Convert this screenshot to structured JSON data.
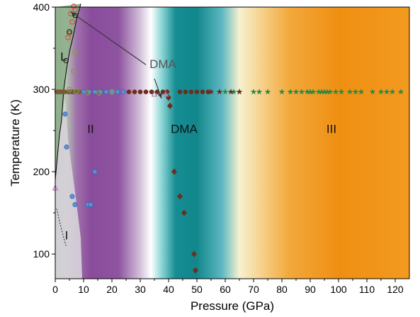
{
  "chart_data": {
    "type": "scatter",
    "xlabel": "Pressure (GPa)",
    "ylabel": "Temperature (K)",
    "xlim": [
      0,
      125
    ],
    "ylim": [
      70,
      400
    ],
    "xticks": [
      0,
      10,
      20,
      30,
      40,
      50,
      60,
      70,
      80,
      90,
      100,
      110,
      120
    ],
    "yticks": [
      100,
      200,
      300,
      400
    ],
    "grid": false,
    "legend": "none",
    "colors": {
      "phase_L": "#8fb08c",
      "phase_I": "#d6d1d9",
      "phase_II": "#8a4c9c",
      "phase_DMA": "#12878c",
      "phase_III": "#ef8f12",
      "transition_white": "#ffffff",
      "line": "#000000",
      "arrow": "#333333",
      "star": "#2e8a46",
      "brown": "#6b2e1e",
      "blue": "#5b8fd6",
      "green_ring": "#8c9a3a",
      "red_ring": "#d64540",
      "pink": "#c16fb3"
    },
    "phase_labels": [
      {
        "text": "L",
        "x": 3,
        "y": 335
      },
      {
        "text": "II",
        "x": 12.5,
        "y": 247
      },
      {
        "text": "DMA",
        "x": 45.5,
        "y": 247
      },
      {
        "text": "III",
        "x": 97.5,
        "y": 247
      },
      {
        "text": "I",
        "x": 4,
        "y": 118
      }
    ],
    "annotations": [
      {
        "text": "DMA",
        "x": 38,
        "y": 326,
        "arrows": [
          {
            "from": [
              32,
              330
            ],
            "to": [
              5.5,
              394
            ]
          },
          {
            "from": [
              35,
              313
            ],
            "to": [
              37.5,
              289
            ]
          }
        ]
      }
    ],
    "phase_boundary": {
      "x": [
        0,
        0.8,
        1.5,
        2.2,
        3,
        4,
        5.1,
        6.4,
        7.5,
        8.4,
        9
      ],
      "y": [
        190,
        220,
        245,
        262,
        300,
        325,
        347,
        366,
        385,
        396,
        404
      ]
    },
    "phase_boundary_I": {
      "x": [
        0.5,
        1.5,
        2.6,
        3.8
      ],
      "y": [
        155,
        140,
        125,
        110
      ]
    },
    "series": [
      {
        "marker": "star",
        "points": [
          [
            60,
            297
          ],
          [
            63,
            297
          ],
          [
            65,
            297
          ],
          [
            70,
            297
          ],
          [
            72,
            297
          ],
          [
            75,
            297
          ],
          [
            80,
            297
          ],
          [
            83,
            297
          ],
          [
            85,
            297
          ],
          [
            87,
            297
          ],
          [
            89,
            297
          ],
          [
            90,
            297
          ],
          [
            91,
            297
          ],
          [
            93,
            297
          ],
          [
            94,
            297
          ],
          [
            95,
            297
          ],
          [
            96,
            297
          ],
          [
            97,
            297
          ],
          [
            99,
            297
          ],
          [
            101,
            297
          ],
          [
            104,
            297
          ],
          [
            106,
            297
          ],
          [
            108,
            297
          ],
          [
            112,
            297
          ],
          [
            115,
            297
          ],
          [
            117,
            297
          ],
          [
            119,
            297
          ],
          [
            122,
            297
          ]
        ]
      },
      {
        "marker": "star-brown",
        "points": [
          [
            55,
            297
          ],
          [
            58,
            297
          ],
          [
            62,
            297
          ],
          [
            65,
            297
          ]
        ]
      },
      {
        "marker": "circle-brown",
        "points": [
          [
            26,
            297
          ],
          [
            28,
            297
          ],
          [
            30,
            297
          ],
          [
            32,
            297
          ],
          [
            34,
            297
          ],
          [
            36,
            297
          ],
          [
            38,
            297
          ],
          [
            39.5,
            297
          ],
          [
            44,
            297
          ],
          [
            46,
            297
          ],
          [
            48,
            297
          ],
          [
            50,
            297
          ],
          [
            52,
            297
          ],
          [
            54,
            297
          ]
        ]
      },
      {
        "marker": "circle-blue",
        "points": [
          [
            1,
            297
          ],
          [
            2,
            297
          ],
          [
            3,
            297
          ],
          [
            5,
            297
          ],
          [
            6,
            297
          ],
          [
            8,
            297
          ],
          [
            10,
            297
          ],
          [
            12,
            297
          ],
          [
            14,
            297
          ],
          [
            16,
            297
          ],
          [
            18,
            297
          ],
          [
            20,
            297
          ],
          [
            22,
            297
          ],
          [
            24,
            297
          ],
          [
            3.5,
            270
          ],
          [
            4,
            230
          ],
          [
            14,
            200
          ],
          [
            6,
            170
          ],
          [
            7,
            160
          ],
          [
            11.5,
            160
          ],
          [
            12.5,
            160
          ]
        ]
      },
      {
        "marker": "circle-olive-brown",
        "points": [
          [
            0.5,
            297
          ],
          [
            1.5,
            297
          ],
          [
            2.5,
            297
          ],
          [
            3.5,
            297
          ],
          [
            4.5,
            297
          ],
          [
            6,
            297
          ],
          [
            7,
            297
          ],
          [
            8.5,
            297
          ]
        ]
      },
      {
        "marker": "circle-green-open",
        "points": [
          [
            7,
            345
          ],
          [
            6.5,
            322
          ],
          [
            5,
            300
          ],
          [
            7.5,
            298
          ],
          [
            11.5,
            296
          ],
          [
            15.5,
            296
          ],
          [
            20,
            297
          ]
        ]
      },
      {
        "marker": "circle-red-open",
        "points": [
          [
            5.5,
            392
          ],
          [
            6,
            382
          ],
          [
            6.5,
            401
          ],
          [
            5,
            368
          ],
          [
            4.5,
            363
          ],
          [
            7,
            397
          ]
        ]
      },
      {
        "marker": "circle-black-open",
        "points": [
          [
            3.8,
            335
          ],
          [
            5,
            370
          ],
          [
            7,
            390
          ]
        ]
      },
      {
        "marker": "diamond-brown",
        "points": [
          [
            40,
            290
          ],
          [
            40.5,
            280
          ],
          [
            42,
            200
          ],
          [
            44,
            170
          ],
          [
            45.5,
            150
          ],
          [
            49,
            100
          ],
          [
            49.5,
            80
          ]
        ]
      },
      {
        "marker": "triangle-pink",
        "points": [
          [
            0,
            180
          ],
          [
            35,
            294
          ],
          [
            39,
            294
          ]
        ]
      }
    ]
  }
}
